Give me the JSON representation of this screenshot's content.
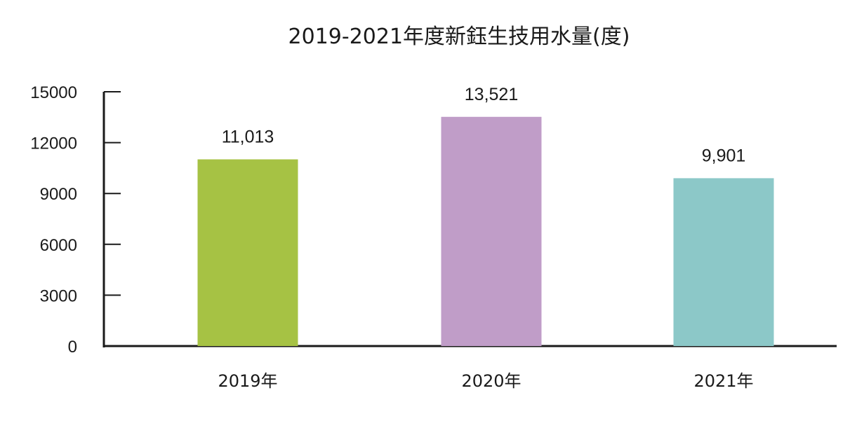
{
  "chart_data": {
    "type": "bar",
    "title": "2019-2021年度新鈺生技用水量(度)",
    "xlabel": "",
    "ylabel": "",
    "categories": [
      "2019年",
      "2020年",
      "2021年"
    ],
    "values": [
      11013,
      13521,
      9901
    ],
    "value_labels": [
      "11,013",
      "13,521",
      "9,901"
    ],
    "colors": [
      "#a6c244",
      "#c09dc8",
      "#8cc8c8"
    ],
    "ylim": [
      0,
      15000
    ],
    "yticks": [
      0,
      3000,
      6000,
      9000,
      12000,
      15000
    ],
    "ytick_labels": [
      "0",
      "3000",
      "6000",
      "9000",
      "12000",
      "15000"
    ],
    "grid": false,
    "legend": "none"
  }
}
